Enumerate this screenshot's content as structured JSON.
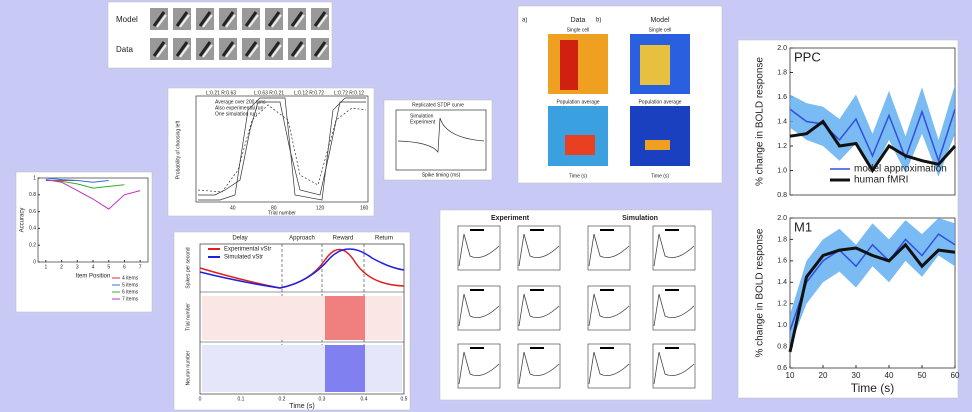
{
  "gabor": {
    "row_labels": [
      "Model",
      "Data"
    ]
  },
  "choice": {
    "x_label": "Trial number",
    "y_label": "Probability of choosing left",
    "legend": [
      "Average over 200 runs",
      "Also experimental run",
      "One simulation run"
    ],
    "headers": [
      "L:0.21 R:0.63",
      "L:0.63 R:0.21",
      "L:0.12 R:0.72",
      "L:0.72 R:0.12"
    ],
    "x_ticks": [
      "40",
      "80",
      "120",
      "160"
    ]
  },
  "stdp": {
    "title": "Replicated STDP curve",
    "legend": [
      "Simulation",
      "Experiment"
    ],
    "x_label": "Spike timing (ms)"
  },
  "spectro": {
    "panels": [
      "a)",
      "b)"
    ],
    "titles": [
      "Data",
      "Model"
    ],
    "subtitles": [
      "Single cell",
      "Population average"
    ],
    "x_label": "Time (s)"
  },
  "accuracy": {
    "type": "line",
    "x_label": "Item Position",
    "y_label": "Accuracy",
    "xlim": [
      0.5,
      7.5
    ],
    "xticks": [
      1,
      2,
      3,
      4,
      5,
      6,
      7
    ],
    "ylim": [
      0,
      1
    ],
    "yticks": [
      0,
      0.2,
      0.4,
      0.6,
      0.8,
      1
    ],
    "series": [
      {
        "name": "4 items",
        "color": "#e03030",
        "x": [
          1,
          2,
          3
        ],
        "values": [
          0.97,
          0.97,
          0.97
        ]
      },
      {
        "name": "5 items",
        "color": "#3070e0",
        "x": [
          1,
          2,
          3,
          4,
          5
        ],
        "values": [
          1.0,
          0.98,
          0.97,
          0.95,
          0.97
        ]
      },
      {
        "name": "6 items",
        "color": "#30b030",
        "x": [
          1,
          2,
          3,
          4,
          5,
          6
        ],
        "values": [
          0.98,
          0.96,
          0.93,
          0.88,
          0.9,
          0.92
        ]
      },
      {
        "name": "7 items",
        "color": "#c030c0",
        "x": [
          1,
          2,
          3,
          4,
          5,
          6,
          7
        ],
        "values": [
          0.98,
          0.95,
          0.85,
          0.75,
          0.63,
          0.8,
          0.85
        ]
      }
    ]
  },
  "vstr": {
    "phases": [
      "Delay",
      "Approach",
      "Reward",
      "Return"
    ],
    "legend": [
      "Experimental vStr",
      "Simulated vStr"
    ],
    "y_labels": [
      "Spikes per second",
      "Trial number",
      "Neuron number"
    ],
    "x_label": "Time (s)",
    "x_ticks": [
      "0",
      "0.1",
      "0.2",
      "0.3",
      "0.4",
      "0.5"
    ]
  },
  "exp_sim": {
    "titles": [
      "Experiment",
      "Simulation"
    ]
  },
  "bold": {
    "type": "line",
    "x_label": "Time (s)",
    "y_label": "% change in BOLD response",
    "xlim": [
      10,
      60
    ],
    "xticks": [
      10,
      20,
      30,
      40,
      50,
      60
    ],
    "legend_corner": "lower right",
    "panels": [
      {
        "title": "PPC",
        "ylim": [
          0.8,
          2.0
        ],
        "yticks": [
          {
            "value": 0.8,
            "label": "0.8"
          },
          {
            "value": 1.0,
            "label": "1.0"
          },
          {
            "value": 1.2,
            "label": "1.2"
          },
          {
            "value": 1.4,
            "label": "1.4"
          },
          {
            "value": 1.6,
            "label": "1.6"
          },
          {
            "value": 1.8,
            "label": "1.8"
          },
          {
            "value": 2.0,
            "label": "2.0"
          }
        ],
        "x": [
          10,
          15,
          20,
          25,
          30,
          35,
          40,
          45,
          50,
          55,
          60
        ],
        "series": [
          {
            "name": "model approximation",
            "color": "#3050e0",
            "values": [
              1.5,
              1.4,
              1.38,
              1.25,
              1.42,
              1.12,
              1.45,
              1.1,
              1.48,
              1.08,
              1.5
            ],
            "lower": [
              1.35,
              1.25,
              1.2,
              1.08,
              1.22,
              0.98,
              1.25,
              0.98,
              1.3,
              0.95,
              1.3
            ],
            "upper": [
              1.62,
              1.55,
              1.52,
              1.42,
              1.62,
              1.3,
              1.65,
              1.28,
              1.68,
              1.25,
              1.7
            ]
          },
          {
            "name": "human fMRI",
            "color": "#111111",
            "values": [
              1.28,
              1.3,
              1.4,
              1.2,
              1.22,
              1.0,
              1.2,
              1.12,
              1.08,
              1.05,
              1.2
            ]
          }
        ]
      },
      {
        "title": "M1",
        "ylim": [
          0.6,
          2.0
        ],
        "yticks": [
          {
            "value": 0.6,
            "label": "0.6"
          },
          {
            "value": 0.8,
            "label": "0.8"
          },
          {
            "value": 1.0,
            "label": "1.0"
          },
          {
            "value": 1.2,
            "label": "1.2"
          },
          {
            "value": 1.4,
            "label": "1.4"
          },
          {
            "value": 1.6,
            "label": "1.6"
          },
          {
            "value": 1.8,
            "label": "1.8"
          },
          {
            "value": 2.0,
            "label": "2.0"
          }
        ],
        "x": [
          10,
          15,
          20,
          25,
          30,
          35,
          40,
          45,
          50,
          55,
          60
        ],
        "series": [
          {
            "name": "model approximation",
            "color": "#3050e0",
            "values": [
              0.95,
              1.4,
              1.6,
              1.7,
              1.55,
              1.75,
              1.6,
              1.8,
              1.65,
              1.85,
              1.75
            ],
            "lower": [
              0.8,
              1.2,
              1.4,
              1.5,
              1.35,
              1.55,
              1.4,
              1.6,
              1.45,
              1.65,
              1.55
            ],
            "upper": [
              1.1,
              1.6,
              1.8,
              1.9,
              1.75,
              1.95,
              1.8,
              1.98,
              1.85,
              2.0,
              1.95
            ]
          },
          {
            "name": "human fMRI",
            "color": "#111111",
            "values": [
              0.75,
              1.45,
              1.65,
              1.7,
              1.72,
              1.65,
              1.6,
              1.75,
              1.55,
              1.7,
              1.68
            ]
          }
        ]
      }
    ]
  }
}
